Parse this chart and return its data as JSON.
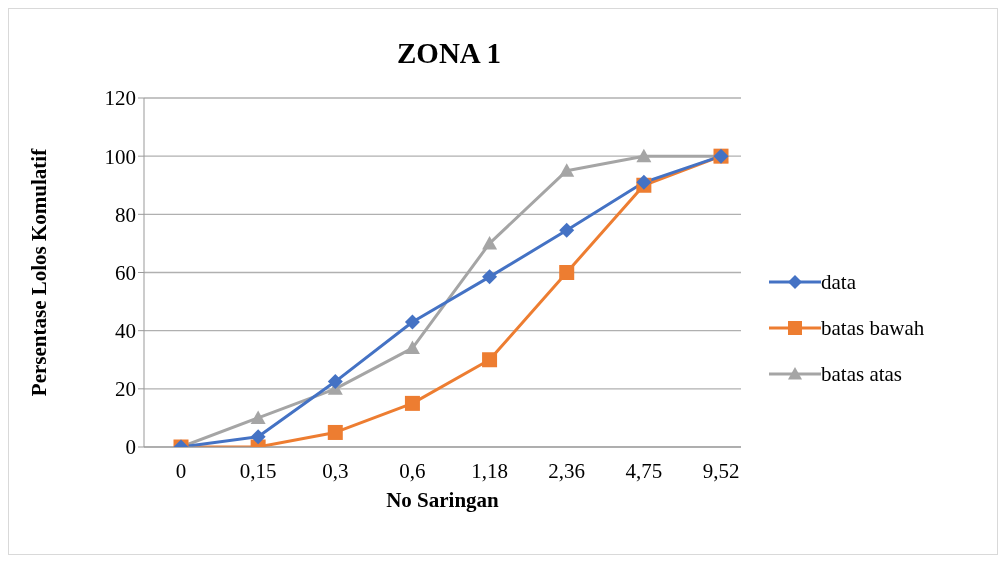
{
  "chart_data": {
    "type": "line",
    "title": "ZONA 1",
    "xlabel": "No Saringan",
    "ylabel": "Persentase Lolos Komulatif",
    "categories": [
      "0",
      "0,15",
      "0,3",
      "0,6",
      "1,18",
      "2,36",
      "4,75",
      "9,52"
    ],
    "series": [
      {
        "name": "data",
        "color": "#4472c4",
        "marker": "diamond",
        "values": [
          0,
          3.5,
          22.5,
          43,
          58.5,
          74.5,
          91,
          100
        ]
      },
      {
        "name": "batas bawah",
        "color": "#ed7d31",
        "marker": "square",
        "values": [
          0,
          0,
          5,
          15,
          30,
          60,
          90,
          100
        ]
      },
      {
        "name": "batas atas",
        "color": "#a5a5a5",
        "marker": "triangle",
        "values": [
          0,
          10,
          20,
          34,
          70,
          95,
          100,
          100
        ]
      }
    ],
    "ylim": [
      0,
      120
    ],
    "yticks": [
      0,
      20,
      40,
      60,
      80,
      100,
      120
    ],
    "grid": "y",
    "legend": "right",
    "line_style": "solid"
  }
}
